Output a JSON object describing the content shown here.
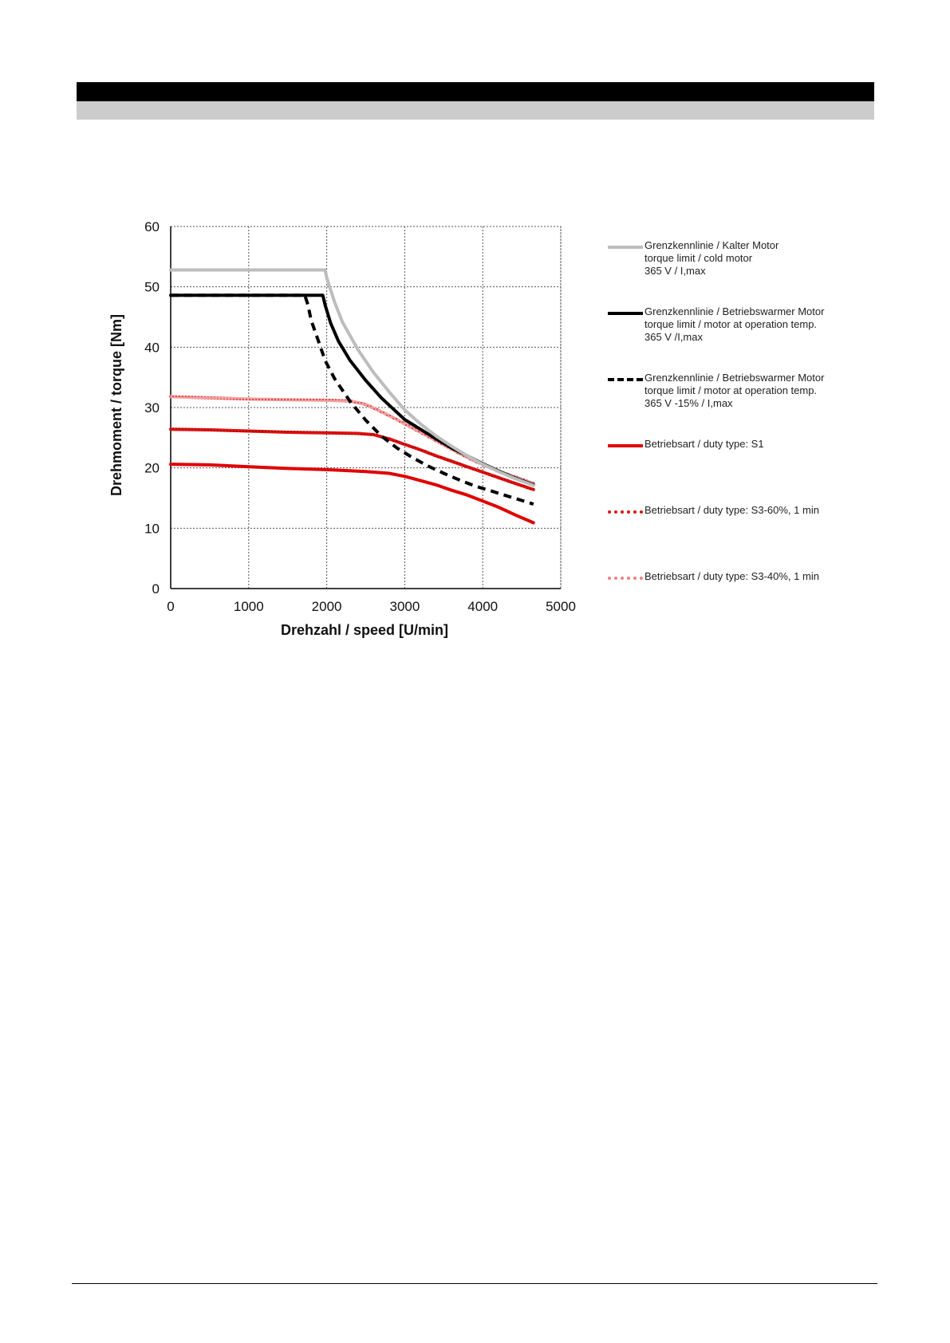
{
  "chart_data": {
    "type": "line",
    "xlabel": "Drehzahl / speed [U/min]",
    "ylabel": "Drehmoment / torque [Nm]",
    "xlim": [
      0,
      5000
    ],
    "ylim": [
      0,
      60
    ],
    "xticks": [
      "0",
      "1000",
      "2000",
      "3000",
      "4000",
      "5000"
    ],
    "yticks": [
      "0",
      "10",
      "20",
      "30",
      "40",
      "50",
      "60"
    ],
    "grid": "dotted",
    "legend_position": "right",
    "series": [
      {
        "name": "Grenzkennlinie / Kalter Motor",
        "legend_lines": [
          "Grenzkennlinie / Kalter Motor",
          "torque limit / cold  motor",
          "365 V / I,max"
        ],
        "color": "#bdbdbd",
        "style": "solid",
        "x": [
          0,
          1980,
          2000,
          2100,
          2200,
          2400,
          2600,
          2800,
          3000,
          3200,
          3400,
          3600,
          3800,
          4000,
          4200,
          4400,
          4650
        ],
        "y": [
          52.8,
          52.8,
          51.5,
          47.5,
          44.2,
          39.6,
          35.8,
          32.6,
          29.6,
          27.3,
          25.3,
          23.6,
          22.0,
          20.6,
          19.4,
          18.3,
          17.1
        ]
      },
      {
        "name": "Grenzkennlinie / Betriebswarmer Motor",
        "legend_lines": [
          "Grenzkennlinie / Betriebswarmer Motor",
          "torque limit / motor at operation temp.",
          "365 V /I,max"
        ],
        "color": "#000000",
        "style": "solid",
        "x": [
          0,
          1950,
          1980,
          2050,
          2150,
          2300,
          2500,
          2700,
          2900,
          3000,
          3200,
          3400,
          3600,
          3800,
          4000,
          4200,
          4400,
          4650
        ],
        "y": [
          48.6,
          48.6,
          47.0,
          44.0,
          41.0,
          37.8,
          34.5,
          31.6,
          29.2,
          28.0,
          26.4,
          24.8,
          23.3,
          22.0,
          20.7,
          19.5,
          18.4,
          17.2
        ]
      },
      {
        "name": "Grenzkennlinie / Betriebswarmer Motor",
        "legend_lines": [
          "Grenzkennlinie / Betriebswarmer Motor",
          "torque limit / motor at operation temp.",
          "365 V  -15% / I,max"
        ],
        "color": "#000000",
        "style": "dashed",
        "x": [
          0,
          1720,
          1760,
          1800,
          1900,
          1980,
          2100,
          2300,
          2500,
          2700,
          2900,
          3100,
          3300,
          3500,
          3700,
          3900,
          4100,
          4300,
          4500,
          4650
        ],
        "y": [
          48.6,
          48.6,
          47.0,
          44.5,
          40.8,
          37.8,
          34.8,
          31.0,
          27.9,
          25.3,
          23.3,
          21.7,
          20.3,
          19.1,
          18.0,
          17.0,
          16.2,
          15.4,
          14.6,
          14.0
        ]
      },
      {
        "name": "Betriebsart / duty type: S1",
        "legend_lines": [
          "Betriebsart / duty type: S1"
        ],
        "color": "#e00000",
        "style": "solid",
        "x": [
          0,
          500,
          1000,
          1500,
          2000,
          2500,
          2800,
          3000,
          3200,
          3400,
          3600,
          3800,
          4000,
          4200,
          4400,
          4650
        ],
        "y": [
          20.6,
          20.5,
          20.2,
          19.9,
          19.7,
          19.4,
          19.1,
          18.6,
          17.9,
          17.2,
          16.3,
          15.5,
          14.5,
          13.5,
          12.3,
          10.9
        ]
      },
      {
        "name": "Betriebsart / duty type: S3-60%, 1 min",
        "legend_lines": [
          "Betriebsart / duty type: S3-60%, 1 min"
        ],
        "color": "#e01010",
        "style": "textured",
        "x": [
          0,
          500,
          1000,
          1500,
          2000,
          2400,
          2600,
          2800,
          3000,
          3200,
          3400,
          3600,
          3800,
          4000,
          4200,
          4400,
          4650
        ],
        "y": [
          26.4,
          26.3,
          26.1,
          25.9,
          25.8,
          25.7,
          25.5,
          24.8,
          23.9,
          23.0,
          22.0,
          21.1,
          20.2,
          19.3,
          18.4,
          17.5,
          16.4
        ]
      },
      {
        "name": "Betriebsart / duty type: S3-40%, 1 min",
        "legend_lines": [
          "Betriebsart / duty type: S3-40%, 1 min"
        ],
        "color": "#f08080",
        "style": "textured",
        "x": [
          0,
          500,
          1000,
          1500,
          2000,
          2300,
          2500,
          2700,
          2900,
          3100,
          3300,
          3500,
          3700,
          3900,
          4100,
          4300,
          4500,
          4650
        ],
        "y": [
          31.8,
          31.6,
          31.4,
          31.3,
          31.2,
          31.1,
          30.5,
          29.3,
          28.0,
          26.6,
          25.2,
          23.8,
          22.4,
          21.1,
          20.0,
          19.0,
          18.1,
          17.4
        ]
      }
    ]
  }
}
